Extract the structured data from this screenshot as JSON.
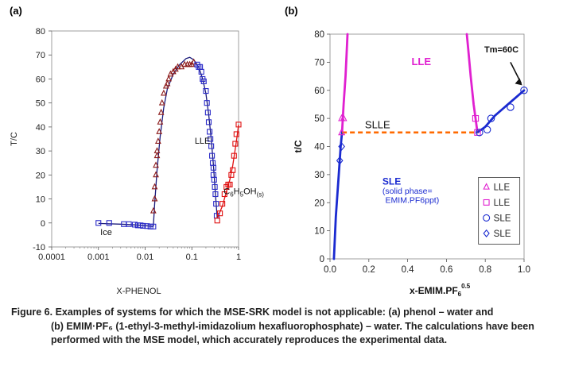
{
  "panels": {
    "a_label": "(a)",
    "b_label": "(b)"
  },
  "caption": {
    "prefix": "Figure 6. Examples of systems for which the MSE-SRK model is not applicable: (a) phenol – water and",
    "rest": "(b) EMIM·PF₆ (1-ethyl-3-methyl-imidazolium hexafluorophosphate) – water. The calculations have been performed with the MSE model, which accurately reproduces the experimental data."
  },
  "chart_data": [
    {
      "type": "scatter",
      "xscale": "log",
      "xlim": [
        0.0001,
        1
      ],
      "ylim": [
        -10,
        80
      ],
      "xticks": [
        "0.0001",
        "0.001",
        "0.01",
        "0.1",
        "1"
      ],
      "yticks": [
        "-10",
        "0",
        "10",
        "20",
        "30",
        "40",
        "50",
        "60",
        "70",
        "80"
      ],
      "xlabel": "X-PHENOL",
      "ylabel": "T/C",
      "grid": false,
      "colors": {
        "ice": "#2b2bc8",
        "lle_left": "#8b1a1a",
        "lle_right": "#2b2bc8",
        "phenol": "#e01010",
        "model": "#1a1a7a"
      },
      "annotations": {
        "ice": "Ice",
        "lle": "LLE",
        "phenol_main": "C",
        "phenol_sub6": "6",
        "phenol_mid": "H",
        "phenol_sub5": "5",
        "phenol_end": "OH",
        "phenol_subs": "(s)"
      },
      "series": [
        {
          "marker": "square",
          "color": "#2b2bc8",
          "points": [
            [
              0.001,
              0
            ],
            [
              0.0017,
              0
            ],
            [
              0.0035,
              -0.5
            ],
            [
              0.0045,
              -0.5
            ],
            [
              0.006,
              -0.7
            ],
            [
              0.007,
              -1
            ],
            [
              0.008,
              -1
            ],
            [
              0.009,
              -1.2
            ],
            [
              0.011,
              -1.3
            ],
            [
              0.013,
              -1.5
            ],
            [
              0.015,
              -1.5
            ]
          ]
        },
        {
          "marker": "triangle",
          "color": "#8b1a1a",
          "points": [
            [
              0.015,
              5
            ],
            [
              0.016,
              10
            ],
            [
              0.016,
              15
            ],
            [
              0.017,
              20
            ],
            [
              0.017,
              24
            ],
            [
              0.018,
              28
            ],
            [
              0.018,
              30
            ],
            [
              0.019,
              34
            ],
            [
              0.02,
              38
            ],
            [
              0.021,
              42
            ],
            [
              0.022,
              46
            ],
            [
              0.023,
              50
            ],
            [
              0.025,
              54
            ],
            [
              0.028,
              57
            ],
            [
              0.03,
              58
            ],
            [
              0.032,
              60
            ],
            [
              0.035,
              62
            ],
            [
              0.04,
              63
            ],
            [
              0.045,
              64
            ],
            [
              0.05,
              65
            ],
            [
              0.06,
              65
            ],
            [
              0.07,
              66
            ],
            [
              0.08,
              66
            ],
            [
              0.09,
              66
            ],
            [
              0.1,
              66
            ],
            [
              0.11,
              67
            ]
          ]
        },
        {
          "marker": "square",
          "color": "#2b2bc8",
          "points": [
            [
              0.13,
              66
            ],
            [
              0.14,
              65
            ],
            [
              0.15,
              65
            ],
            [
              0.16,
              63
            ],
            [
              0.17,
              60
            ],
            [
              0.18,
              59
            ],
            [
              0.2,
              55
            ],
            [
              0.21,
              50
            ],
            [
              0.22,
              46
            ],
            [
              0.23,
              42
            ],
            [
              0.24,
              38
            ],
            [
              0.25,
              35
            ],
            [
              0.26,
              32
            ],
            [
              0.27,
              28
            ],
            [
              0.28,
              25
            ],
            [
              0.29,
              23
            ],
            [
              0.29,
              20
            ],
            [
              0.3,
              18
            ],
            [
              0.31,
              15
            ],
            [
              0.32,
              12
            ],
            [
              0.33,
              8
            ],
            [
              0.34,
              3
            ]
          ]
        },
        {
          "marker": "square",
          "color": "#e01010",
          "points": [
            [
              0.35,
              1
            ],
            [
              0.4,
              4
            ],
            [
              0.45,
              8
            ],
            [
              0.5,
              12
            ],
            [
              0.55,
              15
            ],
            [
              0.6,
              16
            ],
            [
              0.65,
              16
            ],
            [
              0.7,
              20
            ],
            [
              0.75,
              22
            ],
            [
              0.8,
              28
            ],
            [
              0.85,
              33
            ],
            [
              0.9,
              37
            ],
            [
              1.0,
              41
            ]
          ]
        }
      ],
      "model_lines": [
        {
          "color": "#1a1a7a",
          "points": [
            [
              0.001,
              -0.2
            ],
            [
              0.003,
              -0.5
            ],
            [
              0.006,
              -0.8
            ],
            [
              0.01,
              -1.1
            ],
            [
              0.015,
              -1.5
            ]
          ]
        },
        {
          "color": "#1a1a7a",
          "points": [
            [
              0.015,
              -1.5
            ],
            [
              0.016,
              8
            ],
            [
              0.018,
              22
            ],
            [
              0.021,
              36
            ],
            [
              0.025,
              48
            ],
            [
              0.03,
              56
            ],
            [
              0.04,
              62
            ],
            [
              0.055,
              66
            ],
            [
              0.075,
              68.5
            ],
            [
              0.09,
              69
            ],
            [
              0.11,
              68
            ],
            [
              0.14,
              65
            ],
            [
              0.17,
              60
            ],
            [
              0.2,
              54
            ],
            [
              0.23,
              45
            ],
            [
              0.26,
              35
            ],
            [
              0.29,
              24
            ],
            [
              0.32,
              12
            ],
            [
              0.35,
              2
            ]
          ]
        },
        {
          "color": "#e01010",
          "points": [
            [
              0.35,
              2
            ],
            [
              0.45,
              7
            ],
            [
              0.55,
              13
            ],
            [
              0.65,
              18
            ],
            [
              0.75,
              24
            ],
            [
              0.85,
              31
            ],
            [
              0.93,
              36
            ],
            [
              1.0,
              41
            ]
          ]
        }
      ]
    },
    {
      "type": "scatter",
      "xlim": [
        0,
        1.0
      ],
      "ylim": [
        0,
        80
      ],
      "xticks": [
        "0.0",
        "0.2",
        "0.4",
        "0.6",
        "0.8",
        "1.0"
      ],
      "yticks": [
        "0",
        "10",
        "20",
        "30",
        "40",
        "50",
        "60",
        "70",
        "80"
      ],
      "xlabel_main": "x-EMIM.PF",
      "xlabel_sub": "6",
      "xlabel_sup": "0.5",
      "ylabel": "t/C",
      "grid": false,
      "colors": {
        "lle": "#e020d0",
        "sle": "#1a2ad0",
        "slle": "#ff6a00",
        "arrow": "#111111"
      },
      "annotations": {
        "lle": "LLE",
        "slle": "SLLE",
        "sle": "SLE",
        "sle_note1": "(solid phase=",
        "sle_note2": "EMIM.PF6ppt)",
        "tm": "Tm=60C"
      },
      "legend": [
        {
          "label": "LLE",
          "marker": "triangle",
          "color": "#e020d0"
        },
        {
          "label": "LLE",
          "marker": "square",
          "color": "#e020d0"
        },
        {
          "label": "SLE",
          "marker": "circle",
          "color": "#1a2ad0"
        },
        {
          "label": "SLE",
          "marker": "diamond",
          "color": "#1a2ad0"
        }
      ],
      "legend_position": "bottom-right",
      "series": [
        {
          "label": "LLE",
          "marker": "triangle",
          "color": "#e020d0",
          "points": [
            [
              0.06,
              45
            ],
            [
              0.06,
              50
            ],
            [
              0.07,
              50
            ]
          ]
        },
        {
          "label": "LLE",
          "marker": "square",
          "color": "#e020d0",
          "points": [
            [
              0.75,
              50
            ],
            [
              0.76,
              45
            ]
          ]
        },
        {
          "label": "SLE",
          "marker": "circle",
          "color": "#1a2ad0",
          "points": [
            [
              0.77,
              45
            ],
            [
              0.81,
              46
            ],
            [
              0.83,
              50
            ],
            [
              0.93,
              54
            ],
            [
              1.0,
              60
            ]
          ]
        },
        {
          "label": "SLE",
          "marker": "diamond",
          "color": "#1a2ad0",
          "points": [
            [
              0.05,
              35
            ],
            [
              0.06,
              40
            ]
          ]
        }
      ],
      "model_lines": [
        {
          "color": "#e020d0",
          "points": [
            [
              0.062,
              45
            ],
            [
              0.07,
              55
            ],
            [
              0.08,
              65
            ],
            [
              0.085,
              72
            ],
            [
              0.09,
              80
            ]
          ]
        },
        {
          "color": "#e020d0",
          "points": [
            [
              0.76,
              45
            ],
            [
              0.74,
              55
            ],
            [
              0.725,
              65
            ],
            [
              0.712,
              75
            ],
            [
              0.705,
              80
            ]
          ]
        },
        {
          "color": "#1a2ad0",
          "points": [
            [
              0.02,
              0
            ],
            [
              0.03,
              15
            ],
            [
              0.045,
              30
            ],
            [
              0.055,
              40
            ],
            [
              0.062,
              45
            ]
          ]
        },
        {
          "color": "#1a2ad0",
          "points": [
            [
              0.76,
              45
            ],
            [
              0.8,
              47
            ],
            [
              0.85,
              51
            ],
            [
              0.9,
              54
            ],
            [
              0.95,
              57
            ],
            [
              1.0,
              60
            ]
          ]
        }
      ],
      "dashed_lines": [
        {
          "color": "#ff6a00",
          "points": [
            [
              0.062,
              45
            ],
            [
              0.76,
              45
            ]
          ]
        }
      ]
    }
  ]
}
